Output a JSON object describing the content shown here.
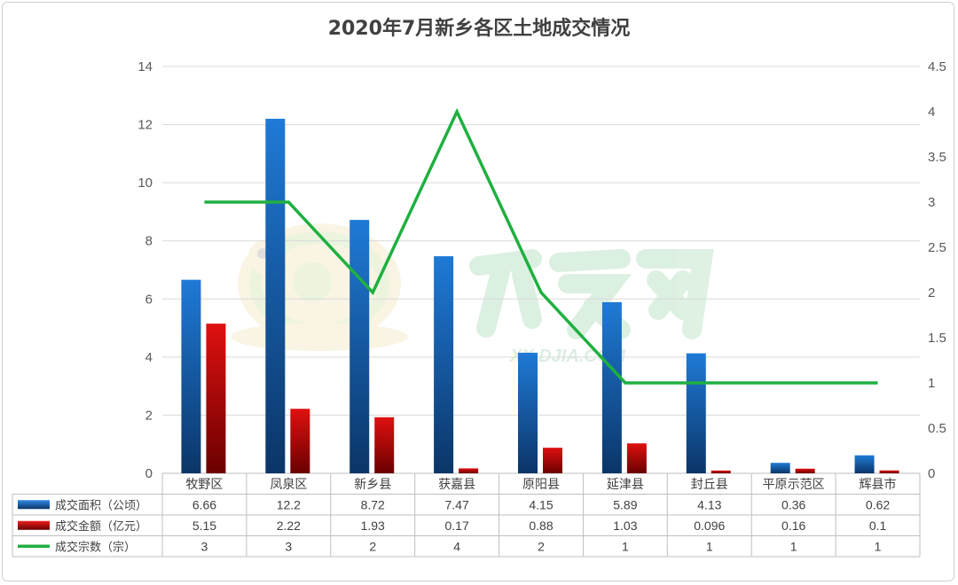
{
  "chart_data": {
    "type": "bar",
    "title": "2020年7月新乡各区土地成交情况",
    "categories": [
      "牧野区",
      "凤泉区",
      "新乡县",
      "获嘉县",
      "原阳县",
      "延津县",
      "封丘县",
      "平原示范区",
      "辉县市"
    ],
    "series": [
      {
        "name": "成交面积（公顷）",
        "type": "bar",
        "axis": "left",
        "color": "#1f6fc0",
        "values": [
          6.66,
          12.2,
          8.72,
          7.47,
          4.15,
          5.89,
          4.13,
          0.36,
          0.62
        ],
        "labels": [
          "6.66",
          "12.2",
          "8.72",
          "7.47",
          "4.15",
          "5.89",
          "4.13",
          "0.36",
          "0.62"
        ]
      },
      {
        "name": "成交金额（亿元）",
        "type": "bar",
        "axis": "left",
        "color": "#c00000",
        "values": [
          5.15,
          2.22,
          1.93,
          0.17,
          0.88,
          1.03,
          0.096,
          0.16,
          0.1
        ],
        "labels": [
          "5.15",
          "2.22",
          "1.93",
          "0.17",
          "0.88",
          "1.03",
          "0.096",
          "0.16",
          "0.1"
        ]
      },
      {
        "name": "成交宗数（宗）",
        "type": "line",
        "axis": "right",
        "color": "#1fb040",
        "values": [
          3,
          3,
          2,
          4,
          2,
          1,
          1,
          1,
          1
        ],
        "labels": [
          "3",
          "3",
          "2",
          "4",
          "2",
          "1",
          "1",
          "1",
          "1"
        ]
      }
    ],
    "y_left": {
      "min": 0,
      "max": 14,
      "ticks": [
        "0",
        "2",
        "4",
        "6",
        "8",
        "10",
        "12",
        "14"
      ]
    },
    "y_right": {
      "min": 0,
      "max": 4.5,
      "ticks": [
        "0",
        "0.5",
        "1",
        "1.5",
        "2",
        "2.5",
        "3",
        "3.5",
        "4",
        "4.5"
      ]
    },
    "grid": true,
    "legend": "data-table",
    "watermark": "XX.DJIA.COM"
  }
}
